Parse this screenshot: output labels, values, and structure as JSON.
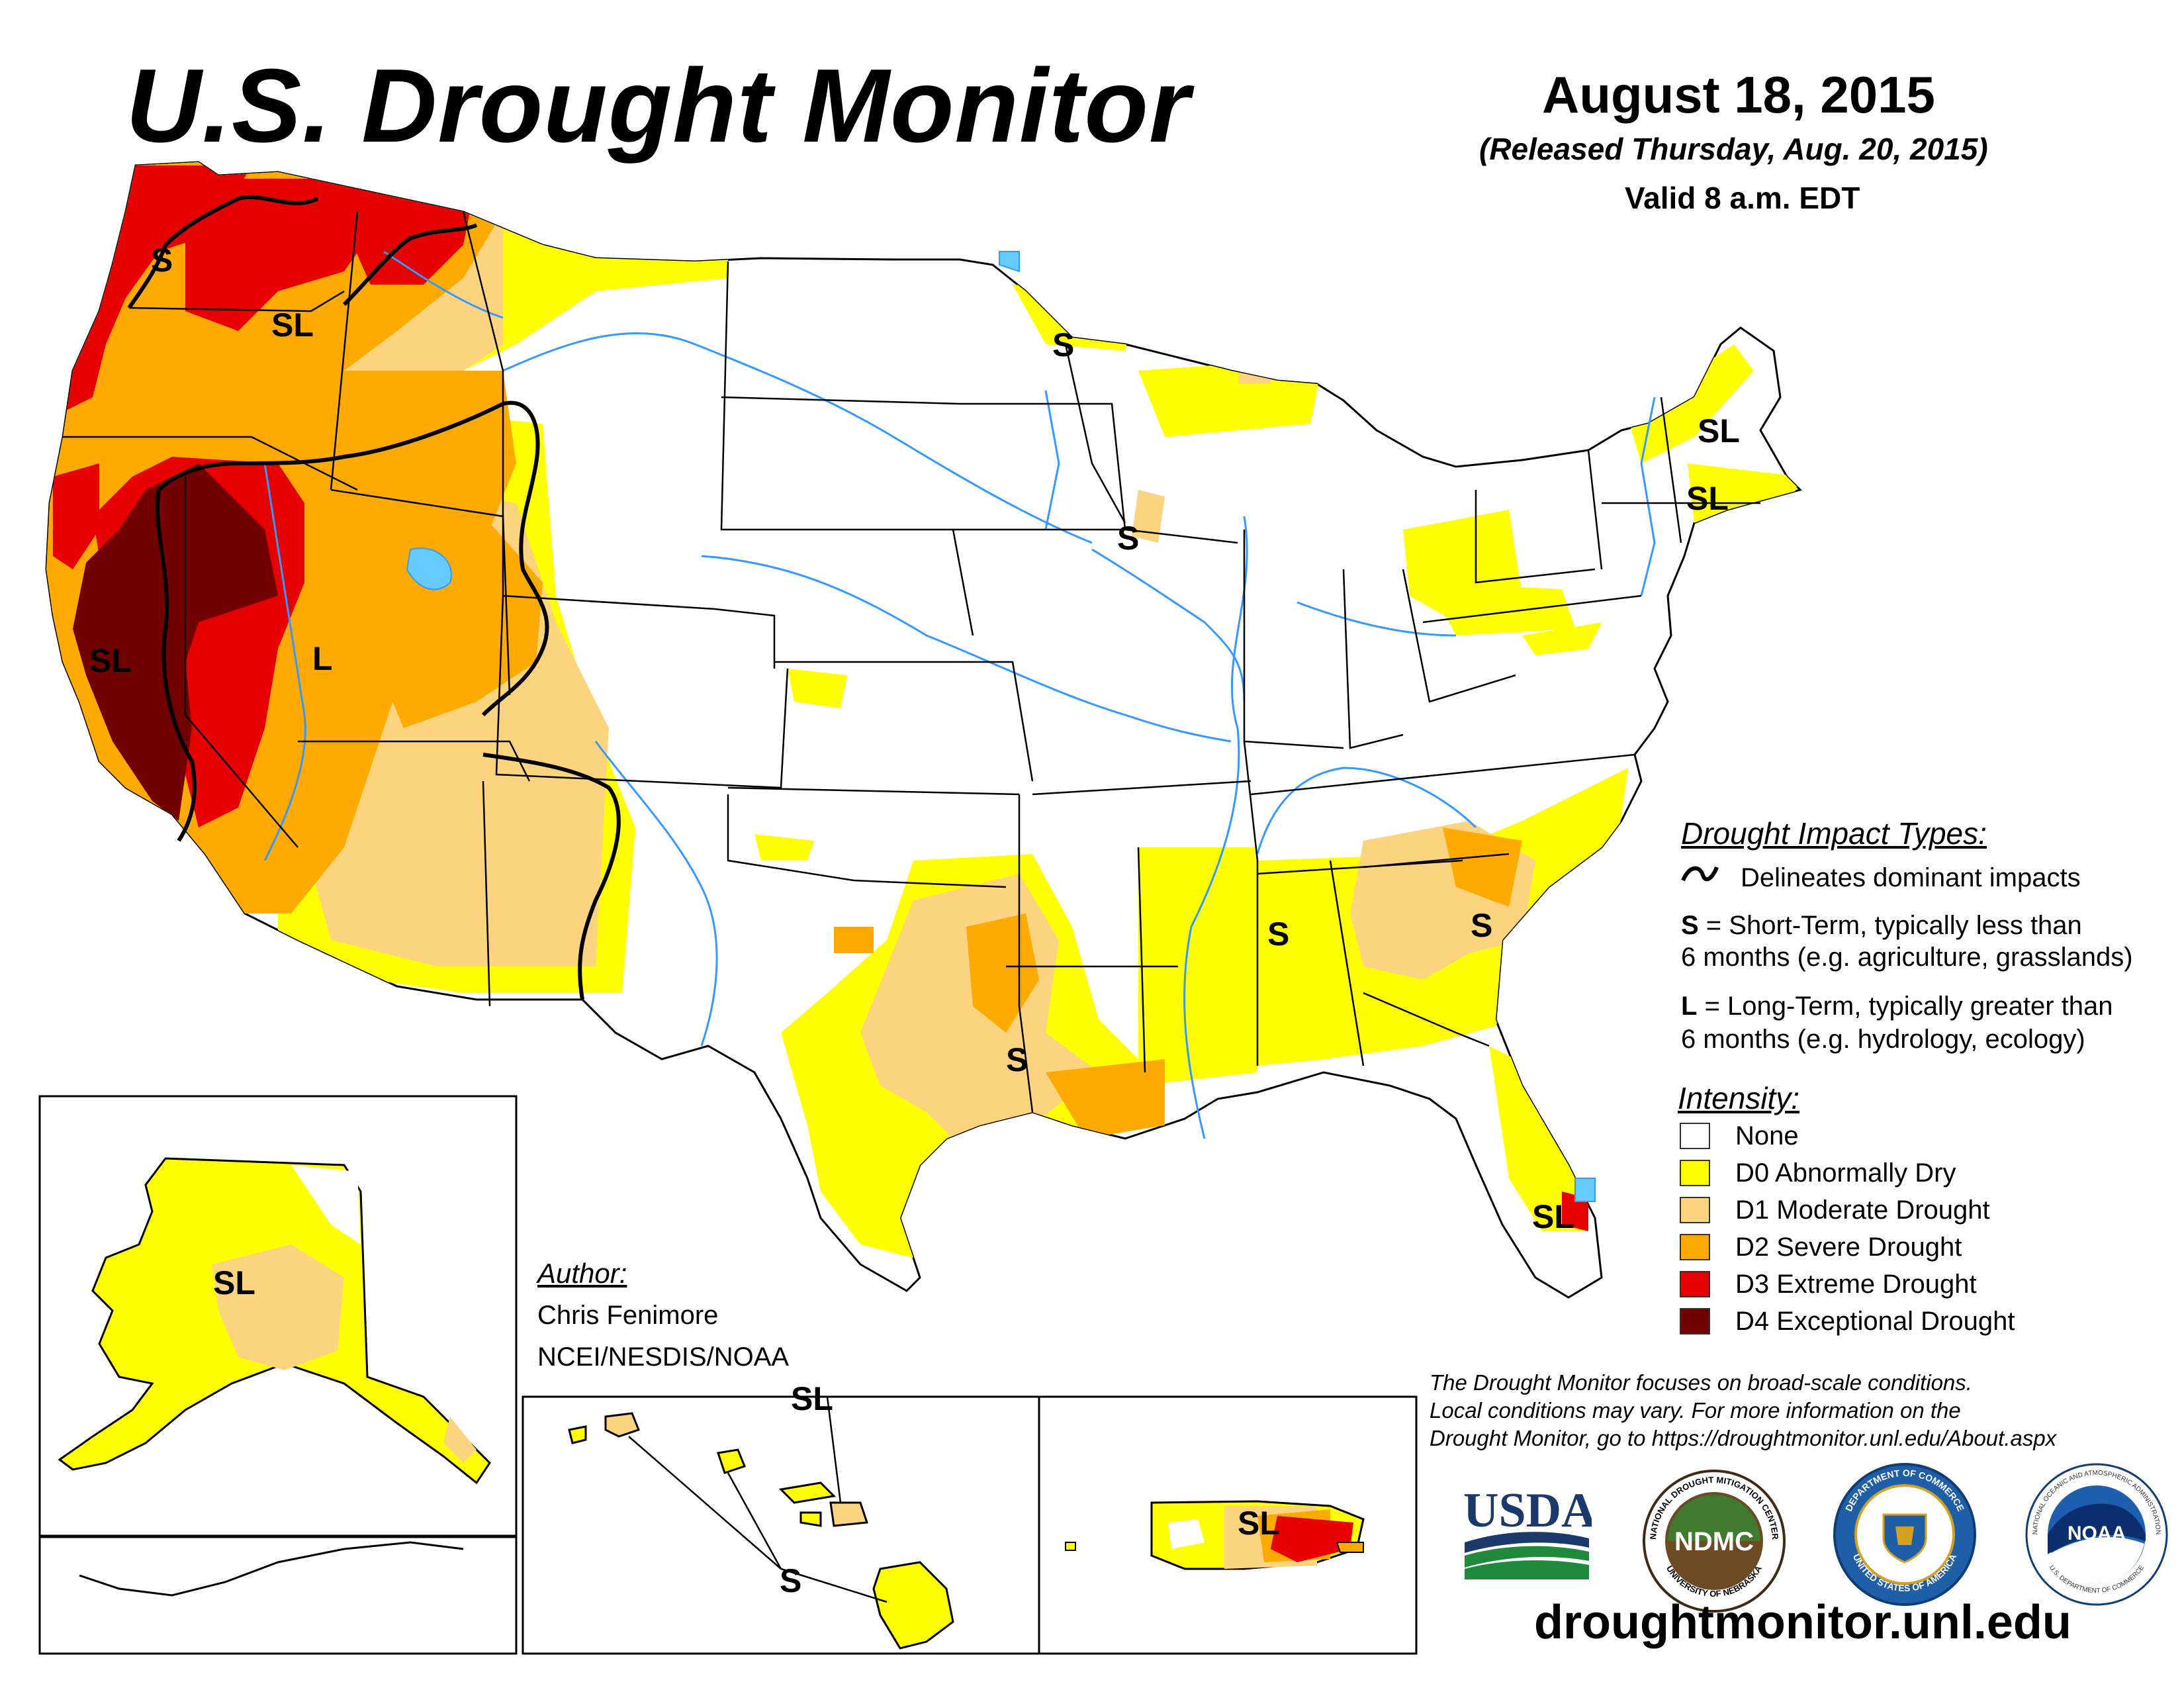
{
  "header": {
    "title": "U.S. Drought Monitor",
    "date": "August 18, 2015",
    "released": "(Released Thursday, Aug. 20, 2015)",
    "valid": "Valid 8 a.m. EDT"
  },
  "map_labels": {
    "s": "S",
    "sl": "SL",
    "l": "L"
  },
  "colors": {
    "none": "#ffffff",
    "d0": "#ffff00",
    "d1": "#fcd37f",
    "d2": "#ffaa00",
    "d3": "#e60000",
    "d4": "#730000",
    "water": "#3399ff",
    "state_line": "#000000"
  },
  "impact_legend": {
    "heading": "Drought Impact Types:",
    "delineates": "Delineates dominant impacts",
    "s_key": "S",
    "s_line1": " = Short-Term, typically less than",
    "s_line2": "6 months (e.g. agriculture, grasslands)",
    "l_key": "L",
    "l_line1": " = Long-Term, typically greater than",
    "l_line2": "6 months (e.g. hydrology, ecology)"
  },
  "intensity_legend": {
    "heading": "Intensity:",
    "items": [
      {
        "label": "None",
        "color": "#ffffff"
      },
      {
        "label": "D0 Abnormally Dry",
        "color": "#ffff00"
      },
      {
        "label": "D1 Moderate Drought",
        "color": "#fcd37f"
      },
      {
        "label": "D2 Severe Drought",
        "color": "#ffaa00"
      },
      {
        "label": "D3 Extreme Drought",
        "color": "#e60000"
      },
      {
        "label": "D4 Exceptional Drought",
        "color": "#730000"
      }
    ]
  },
  "author": {
    "label": "Author:",
    "name": "Chris Fenimore",
    "org": "NCEI/NESDIS/NOAA"
  },
  "footer": {
    "note_line1": "The Drought Monitor focuses on broad-scale conditions.",
    "note_line2": "Local conditions may vary. For more information on the",
    "note_line3": "Drought Monitor, go to https://droughtmonitor.unl.edu/About.aspx",
    "url": "droughtmonitor.unl.edu"
  },
  "logos": {
    "usda": "USDA",
    "ndmc": "NDMC",
    "ndmc_ring_top": "NATIONAL DROUGHT MITIGATION CENTER",
    "ndmc_ring_bottom": "UNIVERSITY OF NEBRASKA",
    "doc_ring_top": "DEPARTMENT OF COMMERCE",
    "doc_ring_bottom": "UNITED STATES OF AMERICA",
    "noaa": "NOAA",
    "noaa_ring_top": "NATIONAL OCEANIC AND ATMOSPHERIC ADMINISTRATION",
    "noaa_ring_bottom": "U.S. DEPARTMENT OF COMMERCE"
  }
}
